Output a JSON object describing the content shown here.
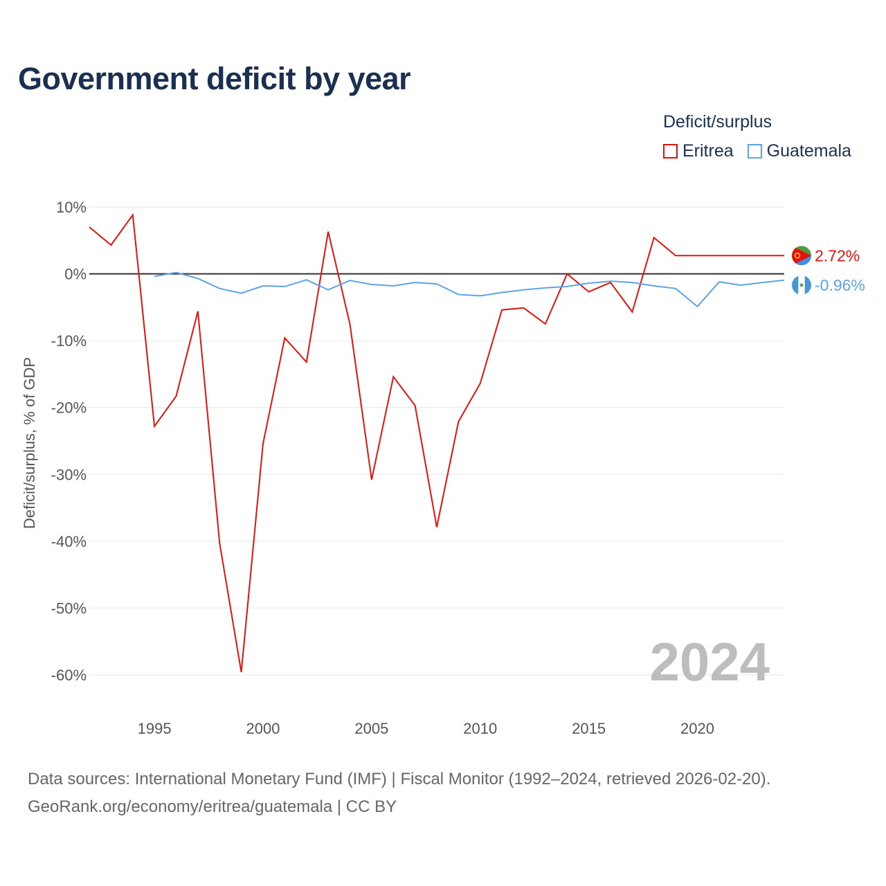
{
  "title": "Government deficit by year",
  "legend": {
    "title": "Deficit/surplus",
    "items": [
      {
        "label": "Eritrea",
        "color": "#e3120b"
      },
      {
        "label": "Guatemala",
        "color": "#5ba4e6"
      }
    ]
  },
  "sources": {
    "line1": "Data sources: International Monetary Fund (IMF) | Fiscal Monitor (1992–2024, retrieved 2026-02-20).",
    "line2": "GeoRank.org/economy/eritrea/guatemala | CC BY"
  },
  "chart_data": {
    "type": "line",
    "title": "Government deficit by year",
    "xlabel": "",
    "ylabel": "Deficit/surplus, % of GDP",
    "xlim": [
      1992,
      2024
    ],
    "ylim": [
      -60,
      10
    ],
    "xticks": [
      1995,
      2000,
      2005,
      2010,
      2015,
      2020
    ],
    "yticks": [
      10,
      0,
      -10,
      -20,
      -30,
      -40,
      -50,
      -60
    ],
    "ytick_labels": [
      "10%",
      "0%",
      "-10%",
      "-20%",
      "-30%",
      "-40%",
      "-50%",
      "-60%"
    ],
    "grid": true,
    "year_label": "2024",
    "series": [
      {
        "name": "Eritrea",
        "color": "#e3120b",
        "end_label": "2.72%",
        "flag_icon": "eritrea-flag-icon",
        "points": [
          [
            1992,
            7.0
          ],
          [
            1993,
            4.3
          ],
          [
            1994,
            8.8
          ],
          [
            1995,
            -22.8
          ],
          [
            1996,
            -18.3
          ],
          [
            1997,
            -5.6
          ],
          [
            1998,
            -40.3
          ],
          [
            1999,
            -59.6
          ],
          [
            2000,
            -25.4
          ],
          [
            2001,
            -9.6
          ],
          [
            2002,
            -13.2
          ],
          [
            2003,
            6.3
          ],
          [
            2004,
            -7.5
          ],
          [
            2005,
            -30.8
          ],
          [
            2006,
            -15.4
          ],
          [
            2007,
            -19.7
          ],
          [
            2008,
            -37.9
          ],
          [
            2009,
            -22.1
          ],
          [
            2010,
            -16.4
          ],
          [
            2011,
            -5.4
          ],
          [
            2012,
            -5.1
          ],
          [
            2013,
            -7.5
          ],
          [
            2014,
            0.0
          ],
          [
            2015,
            -2.7
          ],
          [
            2016,
            -1.3
          ],
          [
            2017,
            -5.7
          ],
          [
            2018,
            5.4
          ],
          [
            2019,
            2.72
          ],
          [
            2024,
            2.72
          ]
        ]
      },
      {
        "name": "Guatemala",
        "color": "#5ba4e6",
        "end_label": "-0.96%",
        "flag_icon": "guatemala-flag-icon",
        "points": [
          [
            1995,
            -0.4
          ],
          [
            1996,
            0.2
          ],
          [
            1997,
            -0.7
          ],
          [
            1998,
            -2.2
          ],
          [
            1999,
            -2.9
          ],
          [
            2000,
            -1.8
          ],
          [
            2001,
            -1.9
          ],
          [
            2002,
            -0.9
          ],
          [
            2003,
            -2.4
          ],
          [
            2004,
            -1.0
          ],
          [
            2005,
            -1.6
          ],
          [
            2006,
            -1.8
          ],
          [
            2007,
            -1.3
          ],
          [
            2008,
            -1.5
          ],
          [
            2009,
            -3.1
          ],
          [
            2010,
            -3.3
          ],
          [
            2011,
            -2.8
          ],
          [
            2012,
            -2.4
          ],
          [
            2013,
            -2.1
          ],
          [
            2014,
            -1.9
          ],
          [
            2015,
            -1.4
          ],
          [
            2016,
            -1.1
          ],
          [
            2017,
            -1.3
          ],
          [
            2018,
            -1.8
          ],
          [
            2019,
            -2.2
          ],
          [
            2020,
            -4.9
          ],
          [
            2021,
            -1.2
          ],
          [
            2022,
            -1.7
          ],
          [
            2023,
            -1.3
          ],
          [
            2024,
            -0.96
          ]
        ]
      }
    ]
  }
}
